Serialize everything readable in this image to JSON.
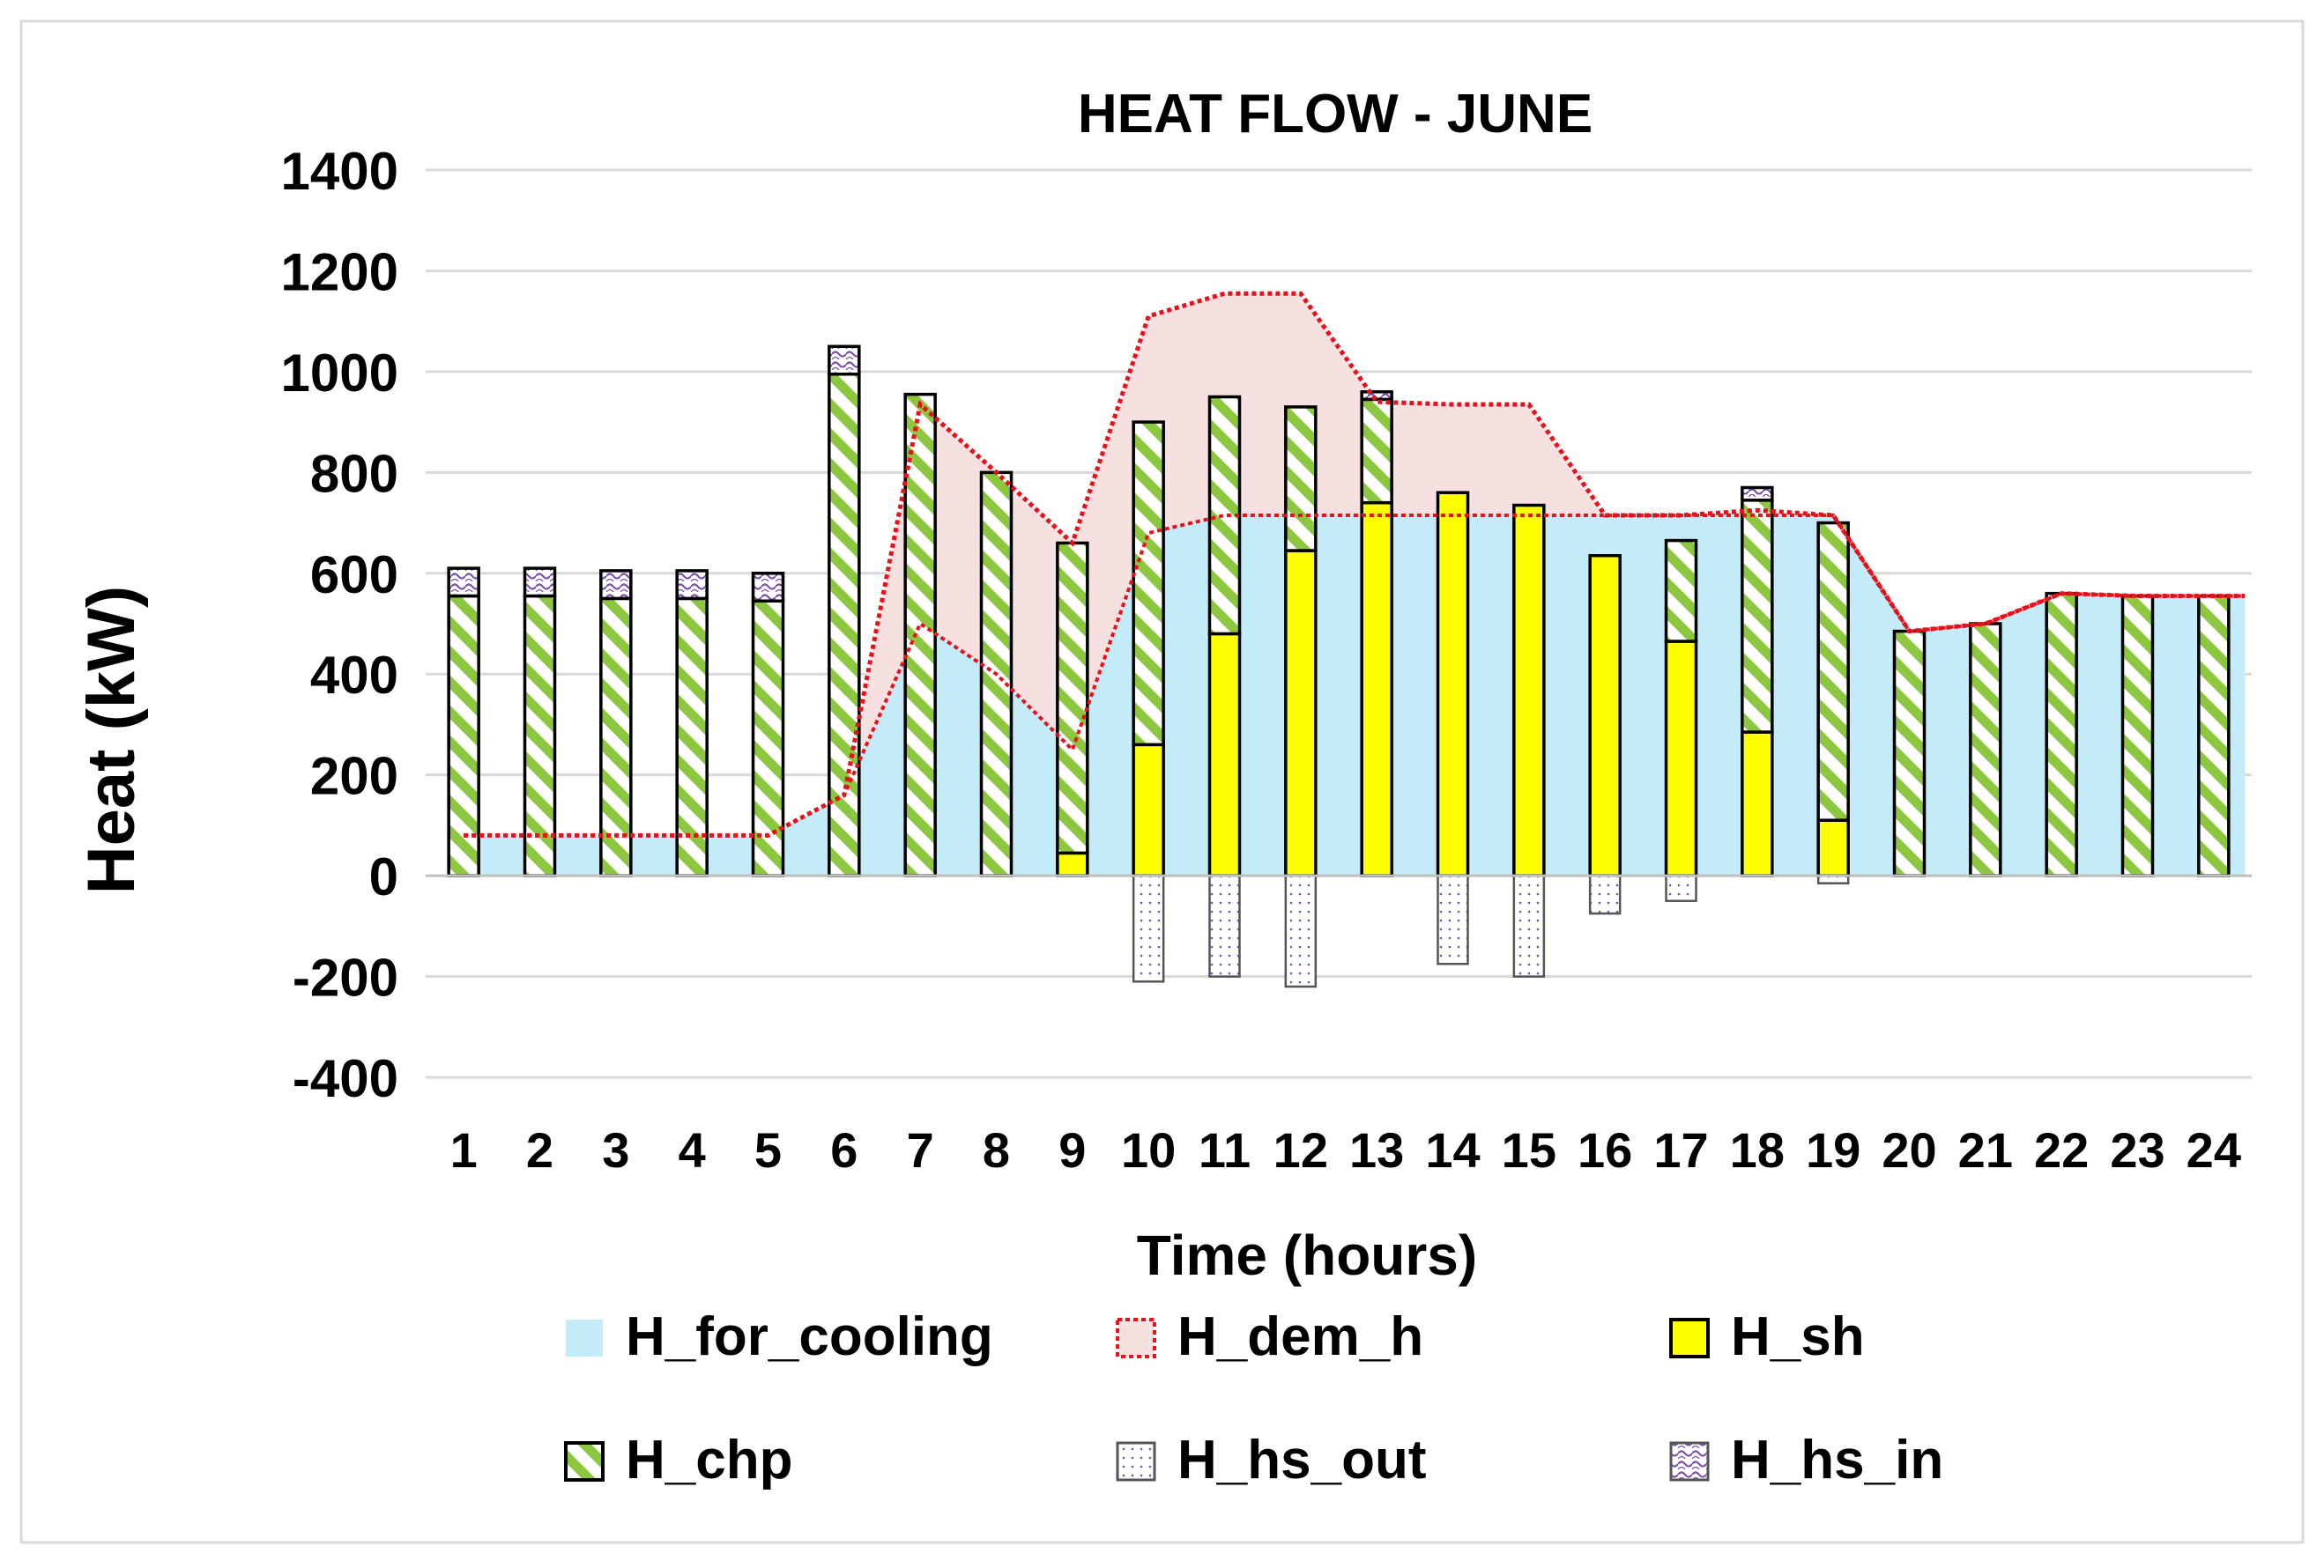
{
  "chart_data": {
    "type": "bar",
    "title": "HEAT FLOW - JUNE",
    "xlabel": "Time (hours)",
    "ylabel": "Heat (kW)",
    "ylim": [
      -400,
      1400
    ],
    "yticks": [
      -400,
      -200,
      0,
      200,
      400,
      600,
      800,
      1000,
      1200,
      1400
    ],
    "grid": true,
    "legend_position": "bottom",
    "categories": [
      "1",
      "2",
      "3",
      "4",
      "5",
      "6",
      "7",
      "8",
      "9",
      "10",
      "11",
      "12",
      "13",
      "14",
      "15",
      "16",
      "17",
      "18",
      "19",
      "20",
      "21",
      "22",
      "23",
      "24"
    ],
    "series": [
      {
        "name": "H_for_cooling",
        "kind": "area",
        "color": "#C4ECF8",
        "values": [
          80,
          80,
          80,
          80,
          80,
          160,
          500,
          400,
          250,
          680,
          715,
          715,
          715,
          715,
          715,
          715,
          715,
          715,
          715,
          485,
          500,
          560,
          555,
          555
        ]
      },
      {
        "name": "H_dem_h",
        "kind": "band-line",
        "color": "#E8101A",
        "fill": "#F6E0E0",
        "values": [
          80,
          80,
          80,
          80,
          80,
          160,
          935,
          800,
          660,
          1110,
          1155,
          1155,
          940,
          935,
          935,
          715,
          715,
          725,
          715,
          485,
          500,
          560,
          555,
          555
        ]
      },
      {
        "name": "H_sh",
        "kind": "stacked-bar",
        "color": "#FFFF00",
        "values": [
          0,
          0,
          0,
          0,
          0,
          0,
          0,
          0,
          45,
          260,
          480,
          645,
          740,
          760,
          735,
          635,
          465,
          285,
          110,
          0,
          0,
          0,
          0,
          0
        ]
      },
      {
        "name": "H_chp",
        "kind": "stacked-bar",
        "color": "#8DC63F",
        "values": [
          555,
          555,
          550,
          550,
          545,
          995,
          955,
          800,
          615,
          640,
          470,
          285,
          205,
          0,
          0,
          0,
          200,
          460,
          590,
          485,
          500,
          560,
          555,
          555
        ]
      },
      {
        "name": "H_hs_out",
        "kind": "negative-bar",
        "color": "#7B4FA6",
        "values": [
          0,
          0,
          0,
          0,
          0,
          0,
          0,
          0,
          0,
          -210,
          -200,
          -220,
          0,
          -175,
          -200,
          -75,
          -50,
          0,
          -15,
          0,
          0,
          0,
          0,
          0
        ]
      },
      {
        "name": "H_hs_in",
        "kind": "stacked-bar",
        "color": "#7B4FA6",
        "values": [
          55,
          55,
          55,
          55,
          55,
          55,
          0,
          0,
          0,
          0,
          0,
          0,
          15,
          0,
          0,
          0,
          0,
          25,
          0,
          0,
          0,
          0,
          0,
          0
        ]
      }
    ]
  }
}
